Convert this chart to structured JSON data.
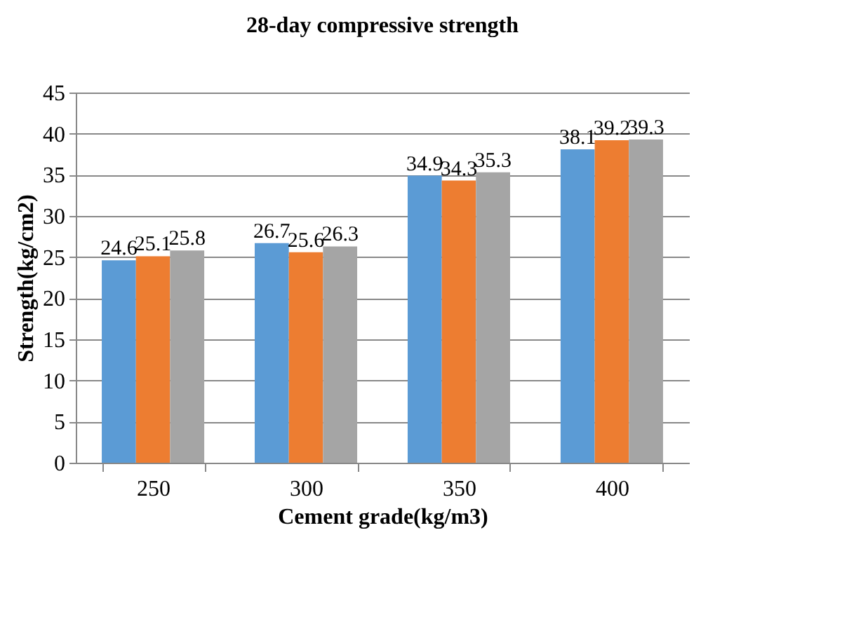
{
  "chart_data": {
    "type": "bar",
    "title": "28-day compressive strength",
    "xlabel": "Cement grade(kg/m3)",
    "ylabel": "Strength(kg/cm2)",
    "categories": [
      "250",
      "300",
      "350",
      "400"
    ],
    "series": [
      {
        "color": "#5b9bd5",
        "values": [
          24.6,
          26.7,
          34.9,
          38.1
        ]
      },
      {
        "color": "#ed7d31",
        "values": [
          25.1,
          25.6,
          34.3,
          39.2
        ]
      },
      {
        "color": "#a5a5a5",
        "values": [
          25.8,
          26.3,
          35.3,
          39.3
        ]
      }
    ],
    "ylim": [
      0,
      45
    ],
    "yticks": [
      0,
      5,
      10,
      15,
      20,
      25,
      30,
      35,
      40,
      45
    ],
    "grid": "y",
    "legend": false,
    "data_labels": true
  }
}
